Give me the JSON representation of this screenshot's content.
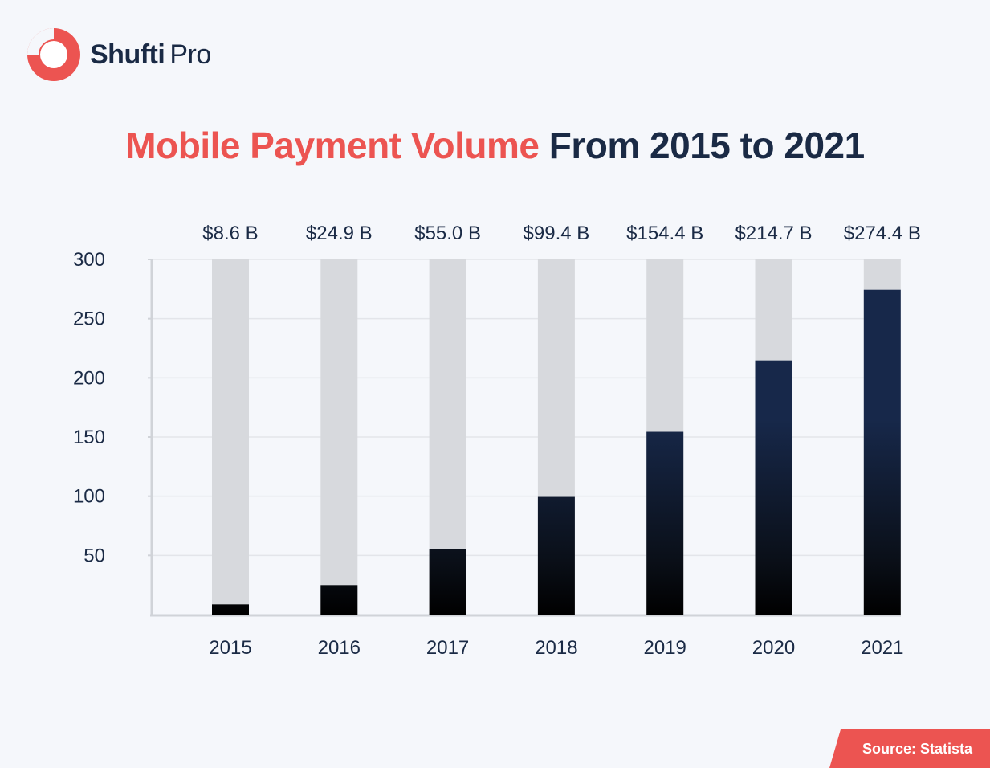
{
  "brand": {
    "name_bold": "Shufti",
    "name_regular": "Pro",
    "accent_color": "#ec5451",
    "icon": "shufti-pro-logo-icon"
  },
  "title": {
    "highlight": "Mobile Payment Volume",
    "rest": "From 2015 to 2021",
    "highlight_color": "#ec5451",
    "rest_color": "#1a2a45"
  },
  "source": {
    "label": "Source: Statista",
    "color": "#ec5451"
  },
  "chart_data": {
    "type": "bar",
    "title": "Mobile Payment Volume From 2015 to 2021",
    "xlabel": "",
    "ylabel": "",
    "categories": [
      "2015",
      "2016",
      "2017",
      "2018",
      "2019",
      "2020",
      "2021"
    ],
    "values": [
      8.6,
      24.9,
      55.0,
      99.4,
      154.4,
      214.7,
      274.4
    ],
    "value_labels": [
      "$8.6 B",
      "$24.9 B",
      "$55.0 B",
      "$99.4 B",
      "$154.4 B",
      "$214.7 B",
      "$274.4 B"
    ],
    "ylim": [
      0,
      300
    ],
    "yticks": [
      50,
      100,
      150,
      200,
      250,
      300
    ],
    "grid": true,
    "legend": "none",
    "bar_color": "#17284a",
    "bar_background_color": "#d7d9dd"
  }
}
